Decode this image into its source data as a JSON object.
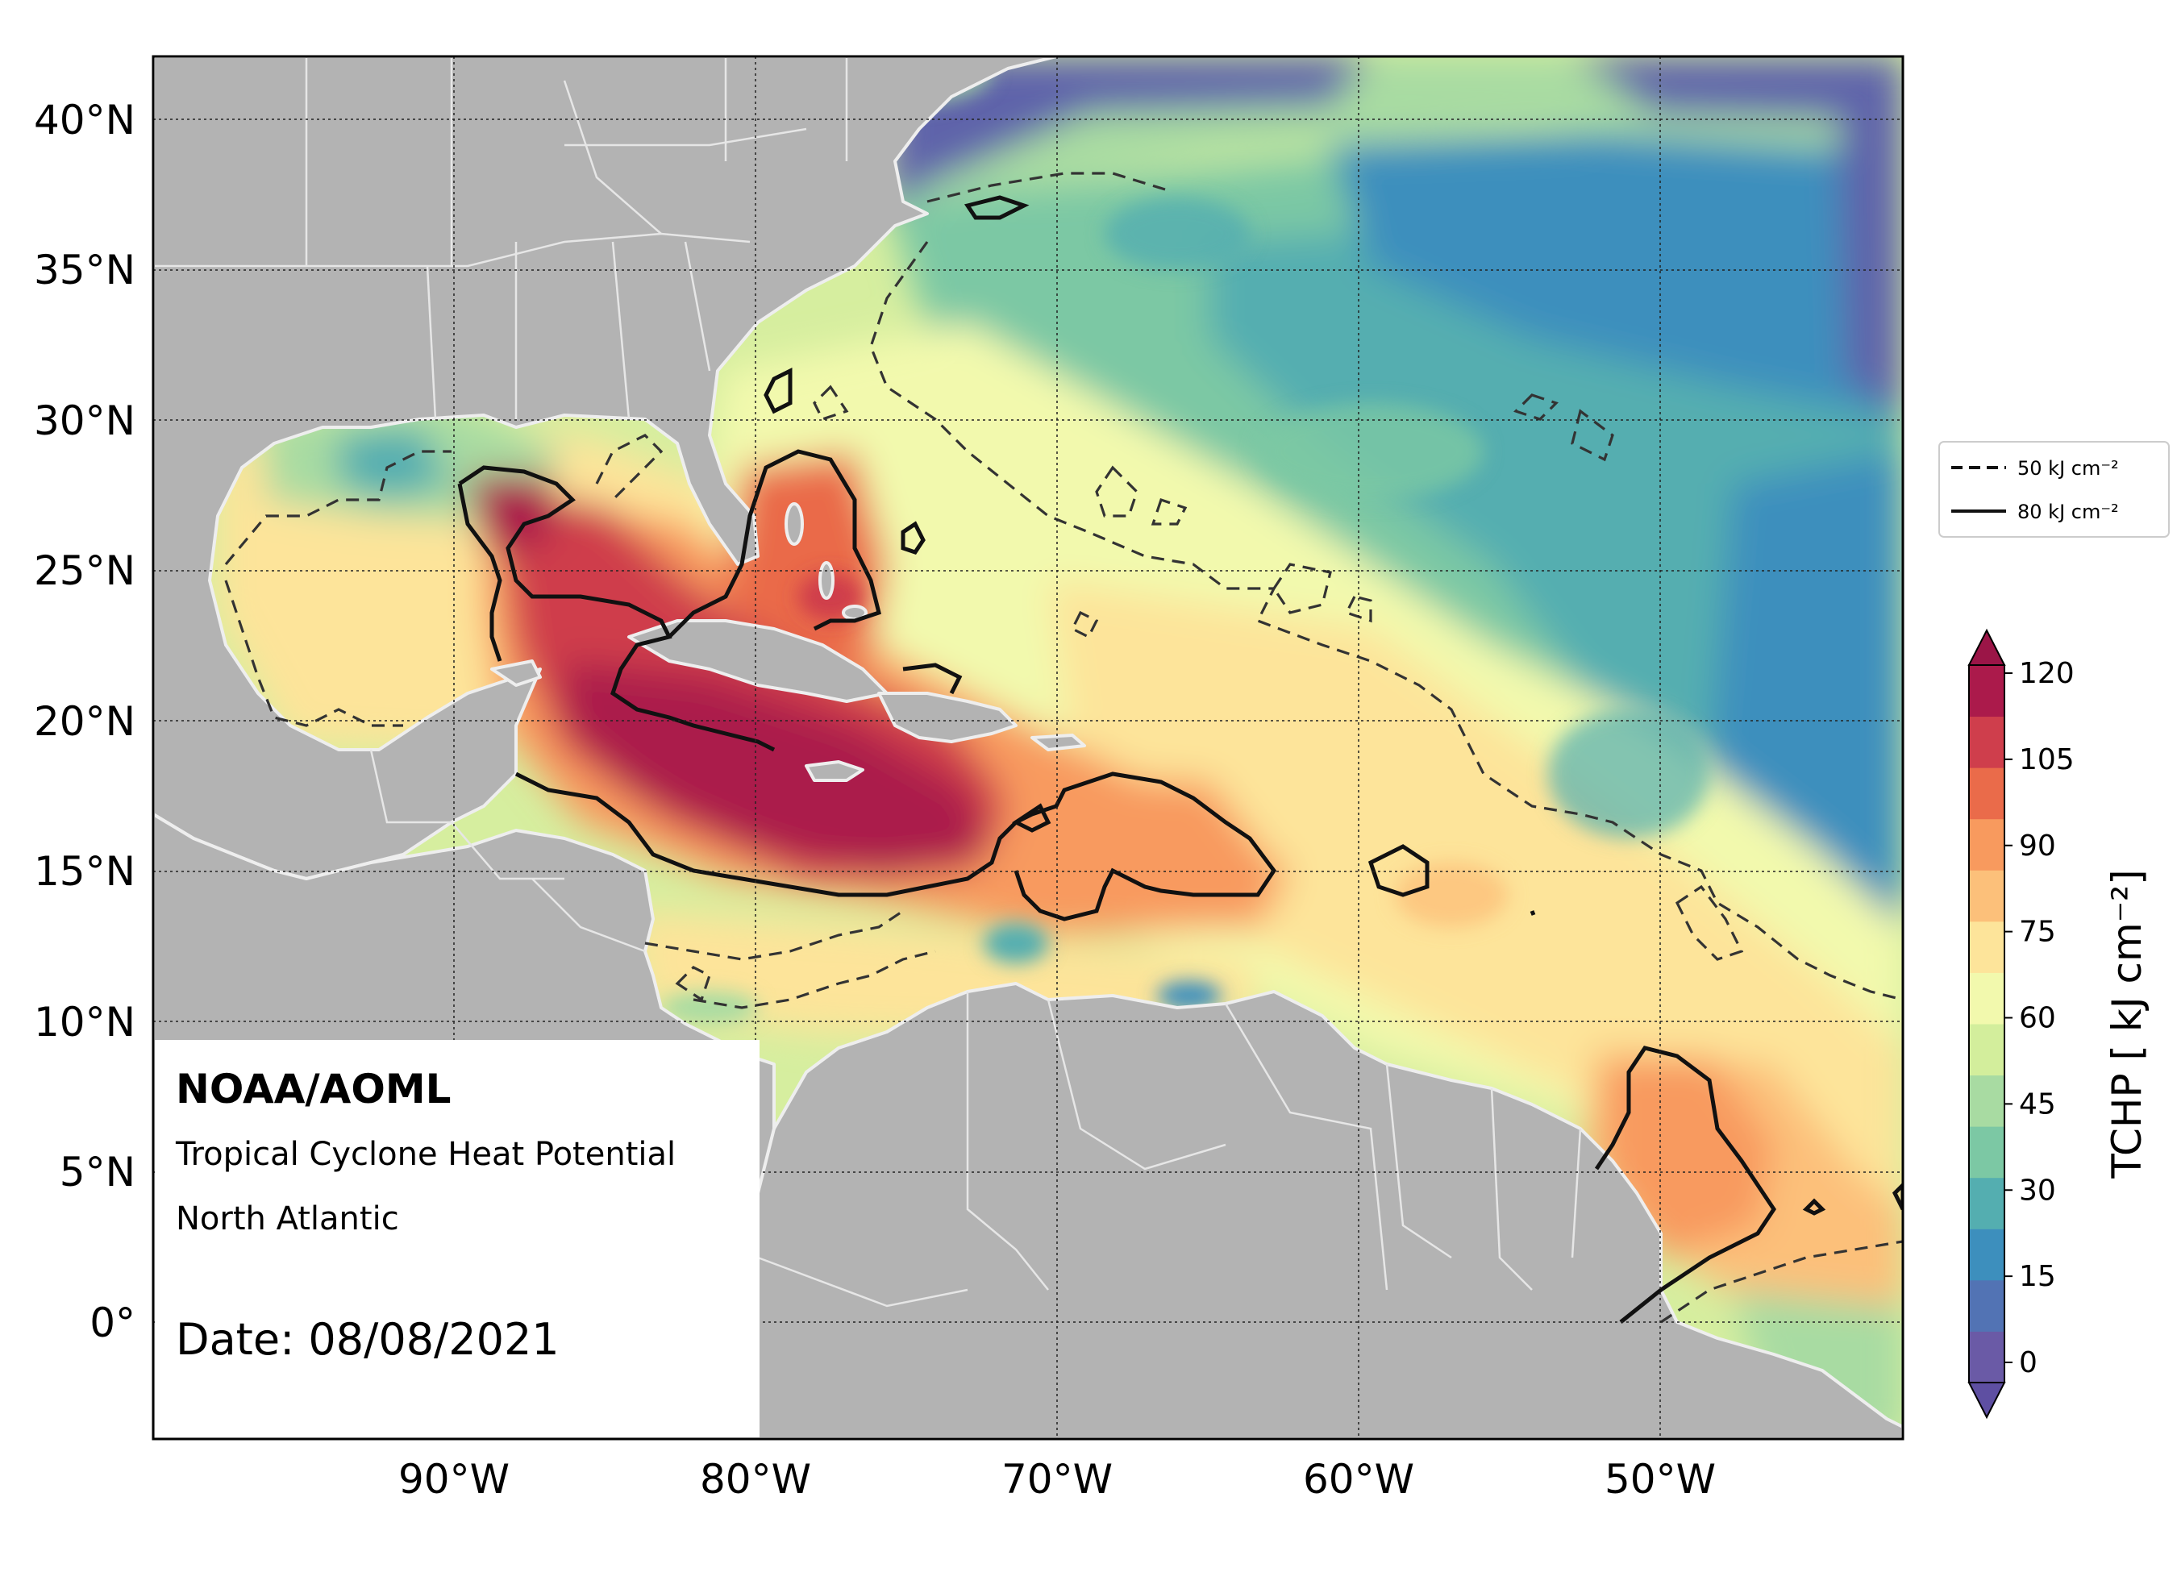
{
  "map": {
    "title": "NOAA/AOML",
    "subtitle": "Tropical Cyclone Heat Potential",
    "region": "North Atlantic",
    "date_label": "Date: 08/08/2021",
    "lat_ticks": [
      "40°N",
      "35°N",
      "30°N",
      "25°N",
      "20°N",
      "15°N",
      "10°N",
      "5°N",
      "0°"
    ],
    "lon_ticks": [
      "90°W",
      "80°W",
      "70°W",
      "60°W",
      "50°W"
    ],
    "lon_range": [
      -100,
      -42
    ],
    "lat_range": [
      -4,
      42
    ]
  },
  "legend": {
    "dashed_label": "50 kJ cm⁻²",
    "solid_label": "80 kJ cm⁻²"
  },
  "colorbar": {
    "label": "TCHP [ kJ cm⁻²]",
    "ticks": [
      "120",
      "105",
      "90",
      "75",
      "60",
      "45",
      "30",
      "15",
      "0"
    ],
    "range": [
      0,
      120
    ],
    "colors": [
      "#6a5aa6",
      "#5273b4",
      "#3d8fbd",
      "#54aeb0",
      "#7cc8a4",
      "#a8dba2",
      "#d3ee9c",
      "#f2f9ad",
      "#fde49a",
      "#fcc07a",
      "#f89a5e",
      "#ea6b4a",
      "#cf3e4c",
      "#ab1a4b"
    ]
  },
  "colors": {
    "land": "#b3b3b3",
    "coast": "#eeeeee",
    "ocean_background": "#d6ee9f"
  }
}
